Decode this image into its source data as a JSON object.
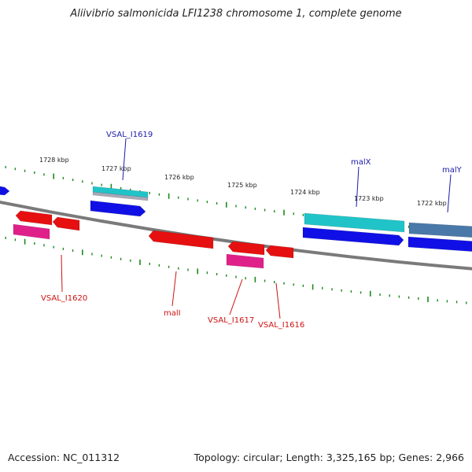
{
  "title": "Aliivibrio salmonicida LFI1238 chromosome 1, complete genome",
  "footer": {
    "accession": "Accession: NC_011312",
    "summary": "Topology: circular; Length: 3,325,165 bp; Genes: 2,966"
  },
  "colors": {
    "backbone": "#7a7a7a",
    "tick": "#1a8a1a",
    "forward_label": "#1a1aaa",
    "reverse_label": "#cc1111",
    "blue": "#1010e6",
    "cyan": "#20c4c8",
    "steel": "#4a78a8",
    "red": "#e61010",
    "pink": "#e0208a",
    "gray": "#a8a8b8"
  },
  "scale_labels": [
    "1728 kbp",
    "1727 kbp",
    "1726 kbp",
    "1725 kbp",
    "1724 kbp",
    "1723 kbp",
    "1722 kbp"
  ],
  "gene_labels": [
    {
      "text": "VSAL_I1619",
      "strand": "forward"
    },
    {
      "text": "malX",
      "strand": "forward"
    },
    {
      "text": "malY",
      "strand": "forward"
    },
    {
      "text": "VSAL_I1620",
      "strand": "reverse"
    },
    {
      "text": "malI",
      "strand": "reverse"
    },
    {
      "text": "VSAL_I1617",
      "strand": "reverse"
    },
    {
      "text": "VSAL_I1616",
      "strand": "reverse"
    }
  ]
}
